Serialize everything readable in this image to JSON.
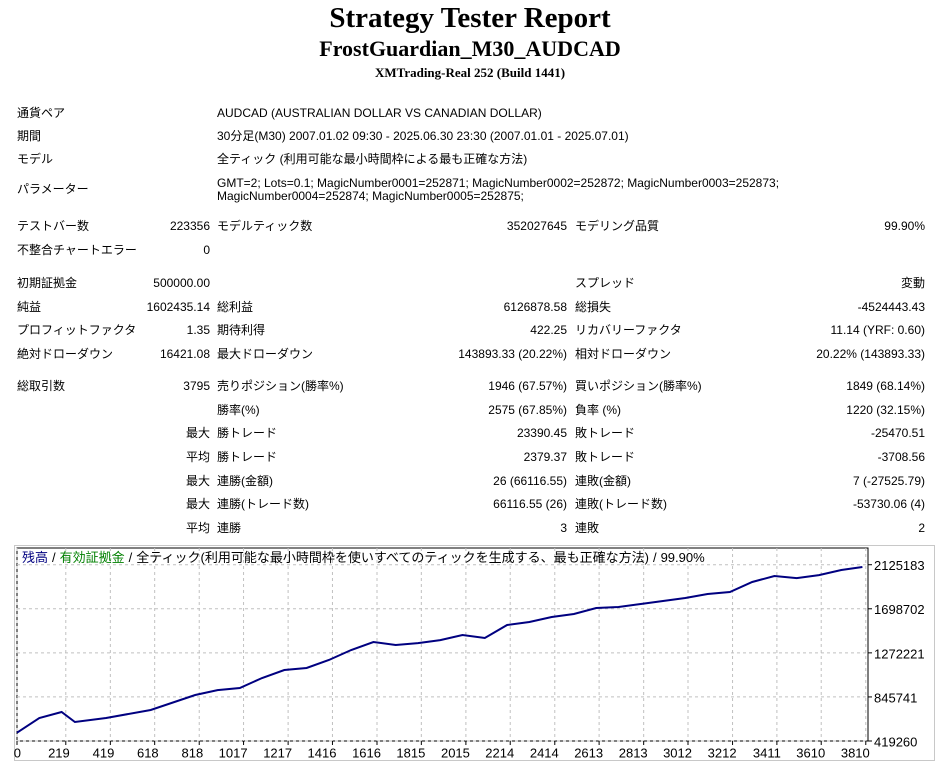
{
  "header": {
    "title": "Strategy Tester Report",
    "subtitle": "FrostGuardian_M30_AUDCAD",
    "server": "XMTrading-Real 252 (Build 1441)"
  },
  "info": [
    {
      "label": "通貨ペア",
      "value": "AUDCAD (AUSTRALIAN DOLLAR VS CANADIAN DOLLAR)"
    },
    {
      "label": "期間",
      "value": "30分足(M30) 2007.01.02 09:30 - 2025.06.30 23:30 (2007.01.01 - 2025.07.01)"
    },
    {
      "label": "モデル",
      "value": "全ティック (利用可能な最小時間枠による最も正確な方法)"
    },
    {
      "label": "パラメーター",
      "value": "GMT=2; Lots=0.1; MagicNumber0001=252871; MagicNumber0002=252872; MagicNumber0003=252873; MagicNumber0004=252874; MagicNumber0005=252875;"
    }
  ],
  "stats": [
    [
      {
        "l1": "テストバー数",
        "v1": "223356",
        "l2": "モデルティック数",
        "v2": "352027645",
        "l3": "モデリング品質",
        "v3": "99.90%"
      },
      {
        "l1": "不整合チャートエラー",
        "v1": "0"
      }
    ],
    [
      {
        "l1": "初期証拠金",
        "v1": "500000.00",
        "l3": "スプレッド",
        "v3": "変動"
      },
      {
        "l1": "純益",
        "v1": "1602435.14",
        "l2": "総利益",
        "v2": "6126878.58",
        "l3": "総損失",
        "v3": "-4524443.43"
      },
      {
        "l1": "プロフィットファクタ",
        "v1": "1.35",
        "l2": "期待利得",
        "v2": "422.25",
        "l3": "リカバリーファクタ",
        "v3": "11.14 (YRF: 0.60)"
      },
      {
        "l1": "絶対ドローダウン",
        "v1": "16421.08",
        "l2": "最大ドローダウン",
        "v2": "143893.33 (20.22%)",
        "l3": "相対ドローダウン",
        "v3": "20.22% (143893.33)"
      }
    ],
    [
      {
        "l1": "総取引数",
        "v1": "3795",
        "l2": "売りポジション(勝率%)",
        "v2": "1946 (67.57%)",
        "l3": "買いポジション(勝率%)",
        "v3": "1849 (68.14%)"
      },
      {
        "l2": "勝率(%)",
        "v2": "2575 (67.85%)",
        "l3": "負率 (%)",
        "v3": "1220 (32.15%)"
      },
      {
        "v1": "最大",
        "l2": "勝トレード",
        "v2": "23390.45",
        "l3": "敗トレード",
        "v3": "-25470.51"
      },
      {
        "v1": "平均",
        "l2": "勝トレード",
        "v2": "2379.37",
        "l3": "敗トレード",
        "v3": "-3708.56"
      },
      {
        "v1": "最大",
        "l2": "連勝(金額)",
        "v2": "26 (66116.55)",
        "l3": "連敗(金額)",
        "v3": "7 (-27525.79)"
      },
      {
        "v1": "最大",
        "l2": "連勝(トレード数)",
        "v2": "66116.55 (26)",
        "l3": "連敗(トレード数)",
        "v3": "-53730.06 (4)"
      },
      {
        "v1": "平均",
        "l2": "連勝",
        "v2": "3",
        "l3": "連敗",
        "v3": "2"
      }
    ]
  ],
  "chart_data": {
    "type": "line",
    "legend_separator": "/",
    "equity_label": "有効証拠金",
    "equity_color": "#008000",
    "model": "全ティック(利用可能な最小時間枠を使いすべてのティックを生成する、最も正確な方法)",
    "quality": "99.90%",
    "x": [
      0,
      100,
      200,
      260,
      400,
      600,
      800,
      900,
      1000,
      1100,
      1200,
      1300,
      1400,
      1500,
      1600,
      1700,
      1800,
      1900,
      2000,
      2100,
      2200,
      2300,
      2400,
      2500,
      2600,
      2700,
      2800,
      2900,
      3000,
      3100,
      3200,
      3300,
      3400,
      3500,
      3600,
      3700,
      3795
    ],
    "series": [
      {
        "name": "残高",
        "color": "#000080",
        "values": [
          500000,
          642000,
          700000,
          603000,
          642000,
          719000,
          864000,
          912000,
          932000,
          1029000,
          1106000,
          1126000,
          1203000,
          1300000,
          1377000,
          1348000,
          1367000,
          1396000,
          1445000,
          1416000,
          1542000,
          1571000,
          1619000,
          1648000,
          1706000,
          1716000,
          1745000,
          1774000,
          1803000,
          1842000,
          1861000,
          1958000,
          2016000,
          1996000,
          2025000,
          2074000,
          2103000
        ]
      }
    ],
    "xlim": [
      0,
      3820
    ],
    "ylim": [
      419260,
      2287000
    ],
    "xticks": [
      0,
      219,
      419,
      618,
      818,
      1017,
      1217,
      1416,
      1616,
      1815,
      2015,
      2214,
      2414,
      2613,
      2813,
      3012,
      3212,
      3411,
      3610,
      3810
    ],
    "yticks": [
      419260,
      845741,
      1272221,
      1698702,
      2125183
    ],
    "grid": true
  }
}
